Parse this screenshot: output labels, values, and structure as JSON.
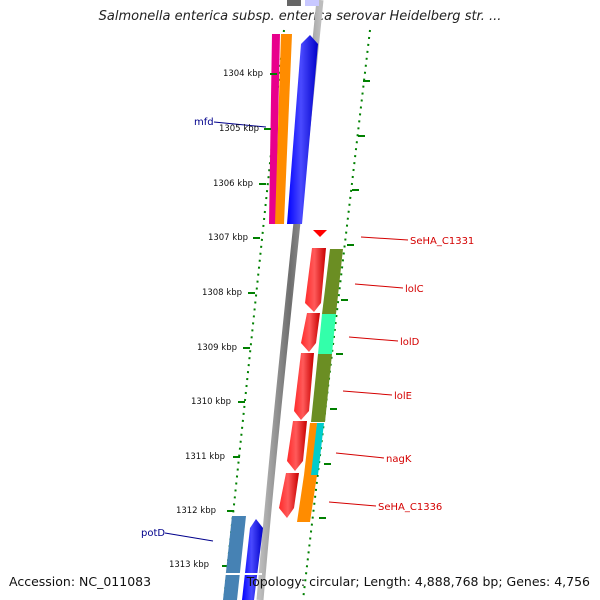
{
  "title": "Salmonella enterica subsp. enterica serovar Heidelberg str. ...",
  "accession": "Accession: NC_011083",
  "summary": "Topology: circular; Length: 4,888,768 bp; Genes: 4,756",
  "ticks": [
    "1304 kbp",
    "1305 kbp",
    "1306 kbp",
    "1307 kbp",
    "1308 kbp",
    "1309 kbp",
    "1310 kbp",
    "1311 kbp",
    "1312 kbp",
    "1313 kbp"
  ],
  "genes": [
    {
      "name": "mfd",
      "color": "#00008b"
    },
    {
      "name": "SeHA_C1331",
      "color": "#d40000"
    },
    {
      "name": "lolC",
      "color": "#d40000"
    },
    {
      "name": "lolD",
      "color": "#d40000"
    },
    {
      "name": "lolE",
      "color": "#d40000"
    },
    {
      "name": "nagK",
      "color": "#d40000"
    },
    {
      "name": "SeHA_C1336",
      "color": "#d40000"
    },
    {
      "name": "potD",
      "color": "#00008b"
    }
  ],
  "colors": {
    "forward_cds": "#0000ff",
    "reverse_cds": "#ff0000",
    "tick_marks": "#008000",
    "backbone": "#808080"
  }
}
